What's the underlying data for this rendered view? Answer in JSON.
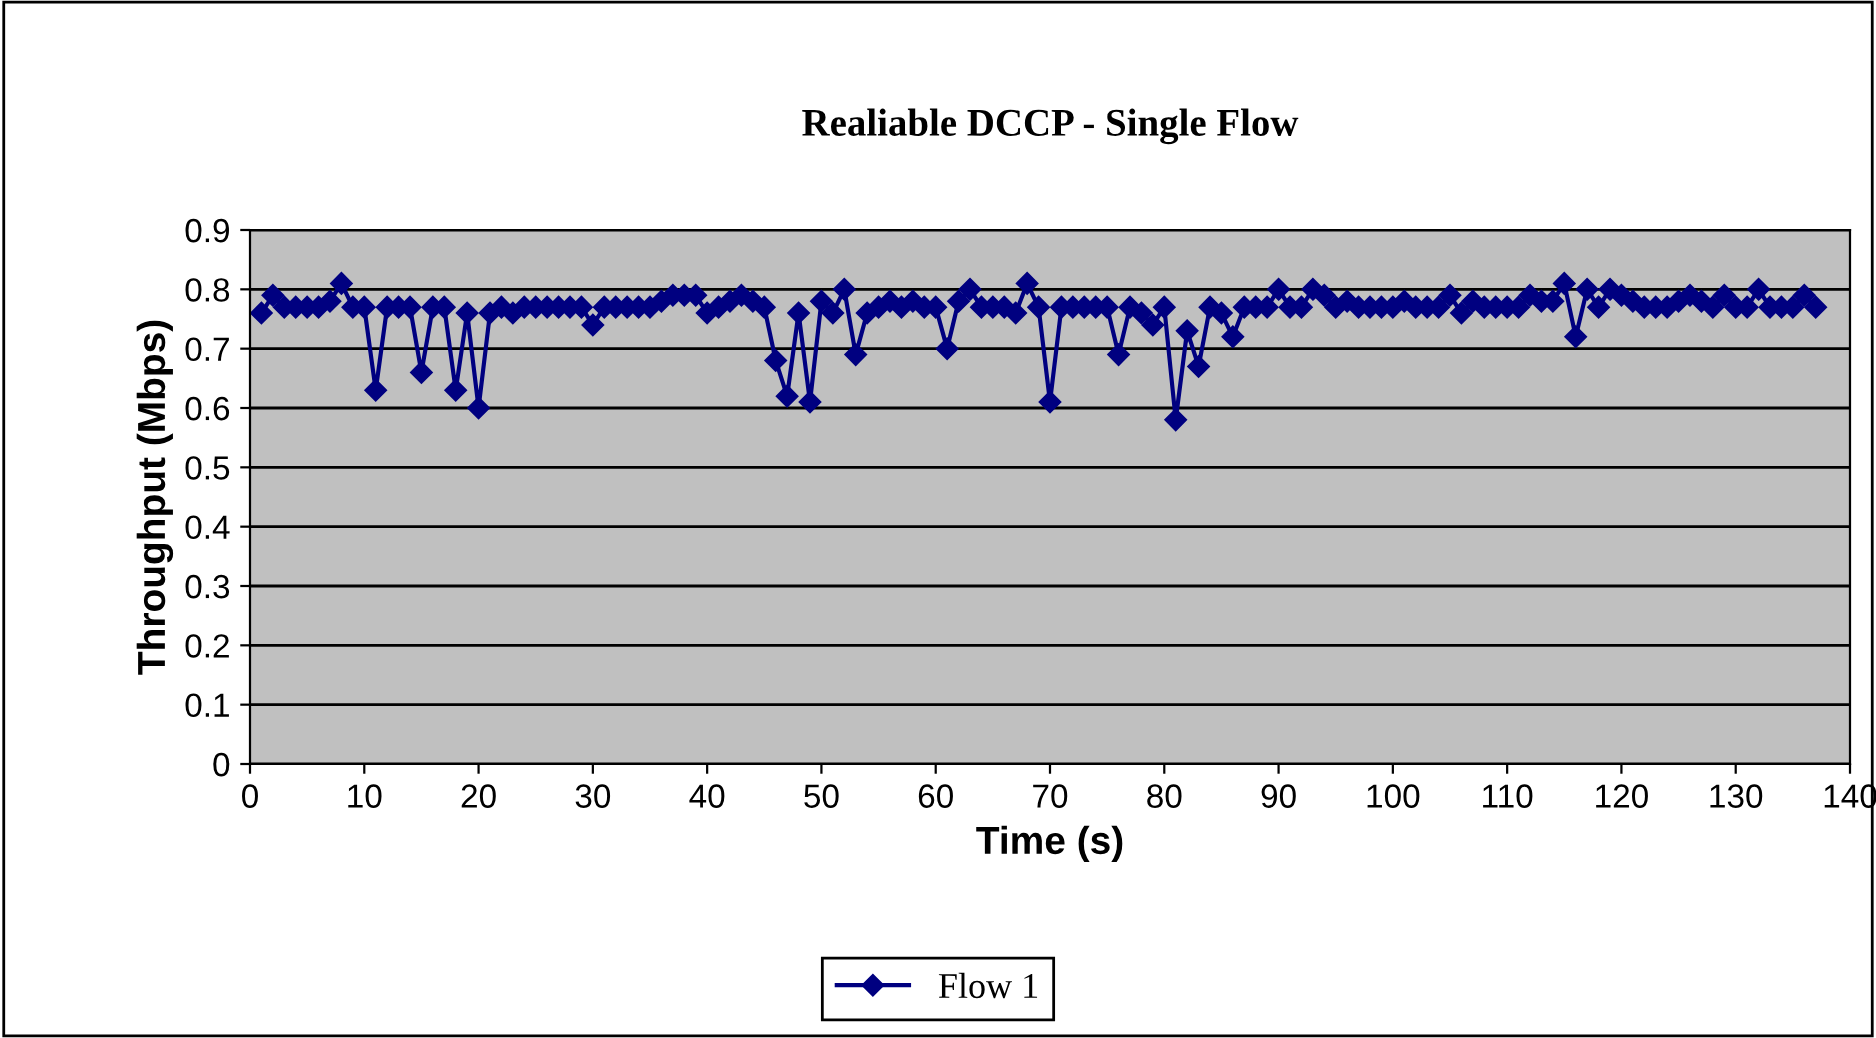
{
  "chart_data": {
    "type": "line",
    "title": "Realiable DCCP - Single Flow",
    "xlabel": "Time (s)",
    "ylabel": "Throughput (Mbps)",
    "x": [
      1,
      2,
      3,
      4,
      5,
      6,
      7,
      8,
      9,
      10,
      11,
      12,
      13,
      14,
      15,
      16,
      17,
      18,
      19,
      20,
      21,
      22,
      23,
      24,
      25,
      26,
      27,
      28,
      29,
      30,
      31,
      32,
      33,
      34,
      35,
      36,
      37,
      38,
      39,
      40,
      41,
      42,
      43,
      44,
      45,
      46,
      47,
      48,
      49,
      50,
      51,
      52,
      53,
      54,
      55,
      56,
      57,
      58,
      59,
      60,
      61,
      62,
      63,
      64,
      65,
      66,
      67,
      68,
      69,
      70,
      71,
      72,
      73,
      74,
      75,
      76,
      77,
      78,
      79,
      80,
      81,
      82,
      83,
      84,
      85,
      86,
      87,
      88,
      89,
      90,
      91,
      92,
      93,
      94,
      95,
      96,
      97,
      98,
      99,
      100,
      101,
      102,
      103,
      104,
      105,
      106,
      107,
      108,
      109,
      110,
      111,
      112,
      113,
      114,
      115,
      116,
      117,
      118,
      119,
      120,
      121,
      122,
      123,
      124,
      125,
      126,
      127,
      128,
      129,
      130,
      131,
      132,
      133,
      134,
      135,
      136,
      137
    ],
    "series": [
      {
        "name": "Flow 1",
        "color": "#000080",
        "values": [
          0.76,
          0.79,
          0.77,
          0.77,
          0.77,
          0.77,
          0.78,
          0.81,
          0.77,
          0.77,
          0.63,
          0.77,
          0.77,
          0.77,
          0.66,
          0.77,
          0.77,
          0.63,
          0.76,
          0.6,
          0.76,
          0.77,
          0.76,
          0.77,
          0.77,
          0.77,
          0.77,
          0.77,
          0.77,
          0.74,
          0.77,
          0.77,
          0.77,
          0.77,
          0.77,
          0.78,
          0.79,
          0.79,
          0.79,
          0.76,
          0.77,
          0.78,
          0.79,
          0.78,
          0.77,
          0.68,
          0.62,
          0.76,
          0.61,
          0.78,
          0.76,
          0.8,
          0.69,
          0.76,
          0.77,
          0.78,
          0.77,
          0.78,
          0.77,
          0.77,
          0.7,
          0.78,
          0.8,
          0.77,
          0.77,
          0.77,
          0.76,
          0.81,
          0.77,
          0.61,
          0.77,
          0.77,
          0.77,
          0.77,
          0.77,
          0.69,
          0.77,
          0.76,
          0.74,
          0.77,
          0.58,
          0.73,
          0.67,
          0.77,
          0.76,
          0.72,
          0.77,
          0.77,
          0.77,
          0.8,
          0.77,
          0.77,
          0.8,
          0.79,
          0.77,
          0.78,
          0.77,
          0.77,
          0.77,
          0.77,
          0.78,
          0.77,
          0.77,
          0.77,
          0.79,
          0.76,
          0.78,
          0.77,
          0.77,
          0.77,
          0.77,
          0.79,
          0.78,
          0.78,
          0.81,
          0.72,
          0.8,
          0.77,
          0.8,
          0.79,
          0.78,
          0.77,
          0.77,
          0.77,
          0.78,
          0.79,
          0.78,
          0.77,
          0.79,
          0.77,
          0.77,
          0.8,
          0.77,
          0.77,
          0.77,
          0.79,
          0.77
        ]
      }
    ],
    "xlim": [
      0,
      140
    ],
    "xticks": [
      0,
      10,
      20,
      30,
      40,
      50,
      60,
      70,
      80,
      90,
      100,
      110,
      120,
      130,
      140
    ],
    "ylim": [
      0,
      0.9
    ],
    "yticks": [
      0,
      0.1,
      0.2,
      0.3,
      0.4,
      0.5,
      0.6,
      0.7,
      0.8,
      0.9
    ],
    "grid": "y",
    "legend": "bottom",
    "marker": "diamond",
    "line_style": "solid"
  }
}
